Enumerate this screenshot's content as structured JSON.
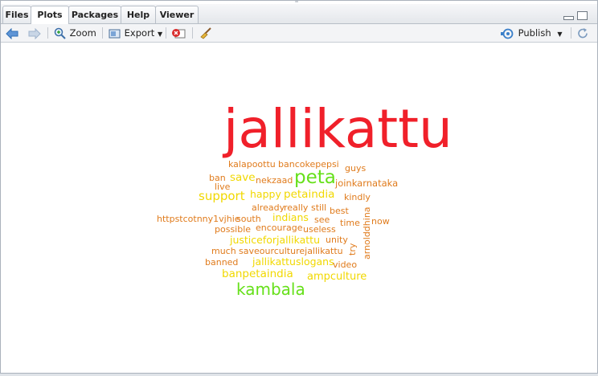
{
  "tabs": [
    {
      "label": "Files",
      "active": false
    },
    {
      "label": "Plots",
      "active": true
    },
    {
      "label": "Packages",
      "active": false
    },
    {
      "label": "Help",
      "active": false
    },
    {
      "label": "Viewer",
      "active": false
    }
  ],
  "toolbar": {
    "zoom_label": "Zoom",
    "export_label": "Export",
    "publish_label": "Publish"
  },
  "icons": [
    "back-arrow-icon",
    "forward-arrow-icon",
    "zoom-icon",
    "export-icon",
    "remove-plot-icon",
    "broom-icon",
    "publish-icon",
    "refresh-icon",
    "minimize-icon",
    "maximize-icon"
  ],
  "colors": {
    "red": "#f0202a",
    "green": "#66e01a",
    "yellow": "#f1d800",
    "orange": "#e07b1c"
  },
  "wordcloud": {
    "words": [
      {
        "text": "jallikattu",
        "color": "red"
      },
      {
        "text": "kalapoottu",
        "color": "orange"
      },
      {
        "text": "bancokepepsi",
        "color": "orange"
      },
      {
        "text": "guys",
        "color": "orange"
      },
      {
        "text": "ban",
        "color": "orange"
      },
      {
        "text": "save",
        "color": "yellow"
      },
      {
        "text": "nekzaad",
        "color": "orange"
      },
      {
        "text": "peta",
        "color": "green"
      },
      {
        "text": "joinkarnataka",
        "color": "orange"
      },
      {
        "text": "live",
        "color": "orange"
      },
      {
        "text": "support",
        "color": "yellow"
      },
      {
        "text": "happy",
        "color": "yellow"
      },
      {
        "text": "petaindia",
        "color": "yellow"
      },
      {
        "text": "kindly",
        "color": "orange"
      },
      {
        "text": "already",
        "color": "orange"
      },
      {
        "text": "really",
        "color": "orange"
      },
      {
        "text": "still",
        "color": "orange"
      },
      {
        "text": "best",
        "color": "orange"
      },
      {
        "text": "httpstcotnny1vjhie",
        "color": "orange"
      },
      {
        "text": "south",
        "color": "orange"
      },
      {
        "text": "indians",
        "color": "yellow"
      },
      {
        "text": "see",
        "color": "orange"
      },
      {
        "text": "time",
        "color": "orange"
      },
      {
        "text": "arnolddhina",
        "color": "orange"
      },
      {
        "text": "now",
        "color": "orange"
      },
      {
        "text": "possible",
        "color": "orange"
      },
      {
        "text": "encourage",
        "color": "orange"
      },
      {
        "text": "useless",
        "color": "orange"
      },
      {
        "text": "justiceforjallikattu",
        "color": "yellow"
      },
      {
        "text": "unity",
        "color": "orange"
      },
      {
        "text": "try",
        "color": "orange"
      },
      {
        "text": "much",
        "color": "orange"
      },
      {
        "text": "saveourculturejallikattu",
        "color": "orange"
      },
      {
        "text": "banned",
        "color": "orange"
      },
      {
        "text": "jallikattuslogans",
        "color": "yellow"
      },
      {
        "text": "video",
        "color": "orange"
      },
      {
        "text": "banpetaindia",
        "color": "yellow"
      },
      {
        "text": "ampculture",
        "color": "yellow"
      },
      {
        "text": "kambala",
        "color": "green"
      }
    ]
  }
}
